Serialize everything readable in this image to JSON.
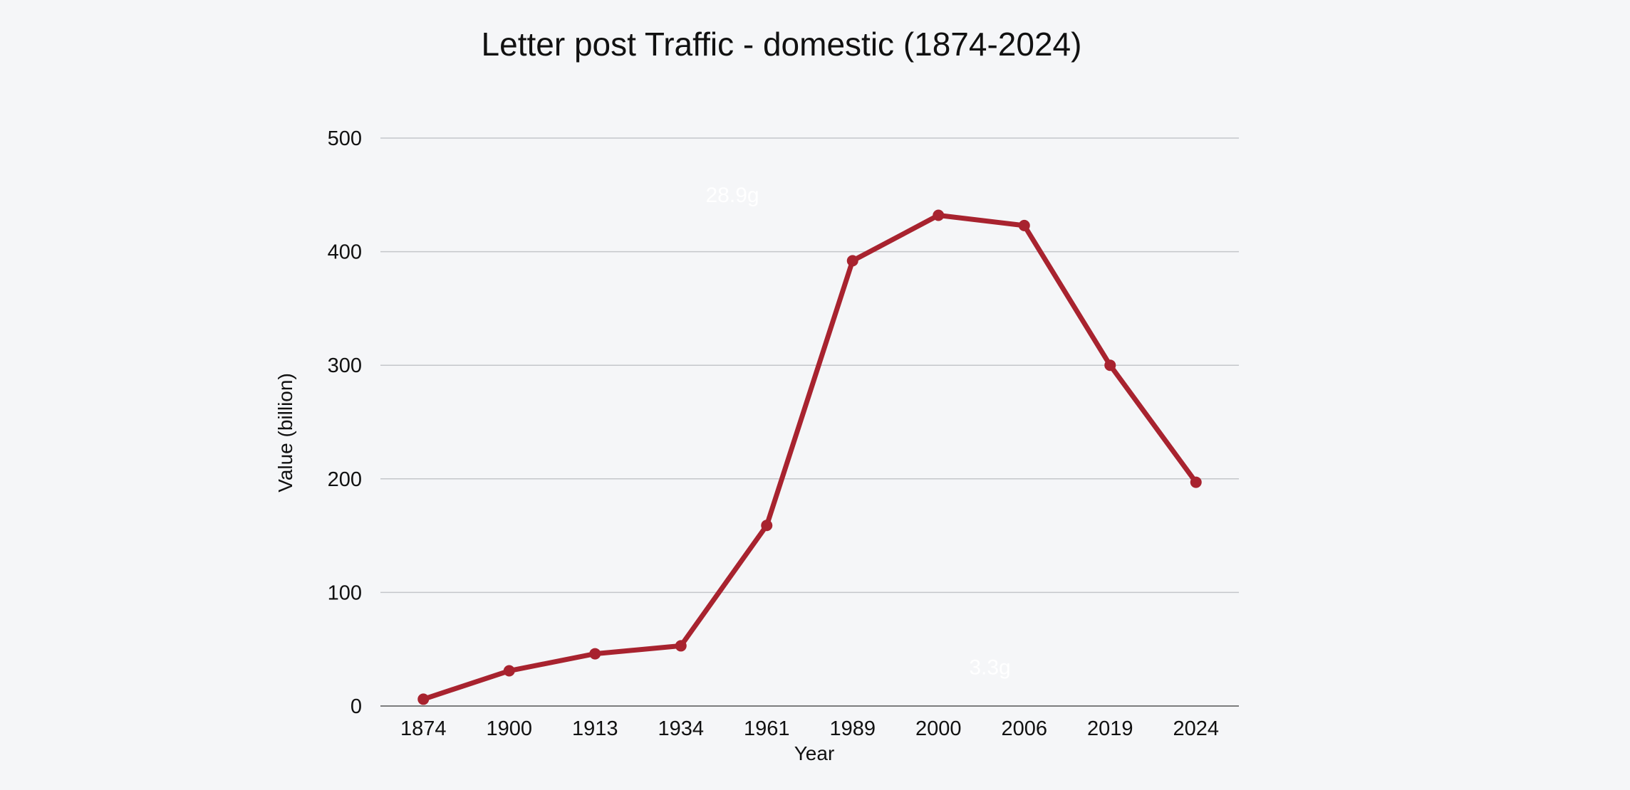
{
  "chart_data": {
    "type": "line",
    "title": "Letter post Traffic - domestic (1874-2024)",
    "xlabel": "Year",
    "ylabel": "Value (billion)",
    "categories": [
      "1874",
      "1900",
      "1913",
      "1934",
      "1961",
      "1989",
      "2000",
      "2006",
      "2019",
      "2024"
    ],
    "series": [
      {
        "values": [
          6,
          31,
          46,
          53,
          159,
          392,
          432,
          423,
          300,
          197
        ]
      }
    ],
    "ylim": [
      0,
      500
    ],
    "yticks": [
      0,
      100,
      200,
      300,
      400,
      500
    ],
    "grid": "horizontal",
    "annotations": [
      {
        "text": "28.9g",
        "category": "1934",
        "value": 450
      },
      {
        "text": "3.3g",
        "category": "2000",
        "value": 34
      }
    ],
    "colors": {
      "line": "#a8232f",
      "background": "#f5f6f8",
      "grid": "#c4c6ca",
      "annotation": "#ffffff"
    }
  }
}
